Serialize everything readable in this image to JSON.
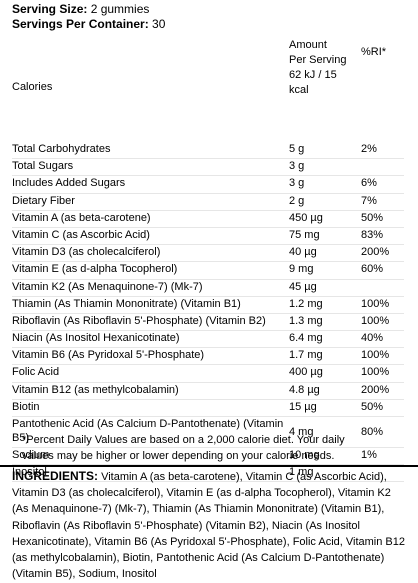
{
  "serving": {
    "size_label": "Serving Size:",
    "size_value": " 2 gummies",
    "per_container_label": "Servings Per Container:",
    "per_container_value": " 30"
  },
  "table": {
    "header_name": "Calories",
    "header_amount_lines": [
      "Amount",
      "Per Serving",
      "62 kJ / 15",
      "kcal"
    ],
    "header_ri": "%RI*",
    "rows": [
      {
        "name": "Total Carbohydrates",
        "amount": "5 g",
        "ri": "2%"
      },
      {
        "name": "Total Sugars",
        "amount": "3 g",
        "ri": ""
      },
      {
        "name": "Includes Added Sugars",
        "amount": "3 g",
        "ri": "6%"
      },
      {
        "name": "Dietary Fiber",
        "amount": "2 g",
        "ri": "7%"
      },
      {
        "name": "Vitamin A (as beta-carotene)",
        "amount": "450 µg",
        "ri": "50%"
      },
      {
        "name": "Vitamin C (as Ascorbic Acid)",
        "amount": "75 mg",
        "ri": "83%"
      },
      {
        "name": "Vitamin D3 (as cholecalciferol)",
        "amount": "40 µg",
        "ri": "200%"
      },
      {
        "name": "Vitamin E (as d-alpha Tocopherol)",
        "amount": "9 mg",
        "ri": "60%"
      },
      {
        "name": "Vitamin K2 (As Menaquinone-7) (Mk-7)",
        "amount": "45 µg",
        "ri": ""
      },
      {
        "name": "Thiamin (As Thiamin Mononitrate) (Vitamin B1)",
        "amount": "1.2 mg",
        "ri": "100%"
      },
      {
        "name": "Riboflavin (As Riboflavin 5'-Phosphate) (Vitamin B2)",
        "amount": "1.3 mg",
        "ri": "100%"
      },
      {
        "name": "Niacin (As Inositol Hexanicotinate)",
        "amount": "6.4 mg",
        "ri": "40%"
      },
      {
        "name": "Vitamin B6 (As Pyridoxal 5'-Phosphate)",
        "amount": "1.7 mg",
        "ri": "100%"
      },
      {
        "name": "Folic Acid",
        "amount": "400 µg",
        "ri": "100%"
      },
      {
        "name": "Vitamin B12 (as methylcobalamin)",
        "amount": "4.8 µg",
        "ri": "200%"
      },
      {
        "name": "Biotin",
        "amount": "15 µg",
        "ri": "50%"
      },
      {
        "name": "Pantothenic Acid (As Calcium D-Pantothenate) (Vitamin B5)",
        "amount": "4 mg",
        "ri": "80%"
      },
      {
        "name": "Sodium",
        "amount": "10 mg",
        "ri": "1%"
      },
      {
        "name": "Inositol",
        "amount": "1 mg",
        "ri": ""
      }
    ]
  },
  "footnote": "*Percent Daily Values are based on a 2,000 calorie diet. Your daily values may be higher or lower depending on your calorie needs.",
  "ingredients": {
    "label": "INGREDIENTS:",
    "text": " Vitamin A (as beta-carotene), Vitamin C (as Ascorbic Acid), Vitamin D3 (as cholecalciferol), Vitamin E (as d-alpha Tocopherol), Vitamin K2 (As Menaquinone-7) (Mk-7), Thiamin (As Thiamin Mononitrate) (Vitamin B1), Riboflavin (As Riboflavin 5'-Phosphate) (Vitamin B2), Niacin (As Inositol Hexanicotinate), Vitamin B6 (As Pyridoxal 5'-Phosphate), Folic Acid, Vitamin B12 (as methylcobalamin), Biotin, Pantothenic Acid (As Calcium D-Pantothenate) (Vitamin B5), Sodium, Inositol"
  }
}
